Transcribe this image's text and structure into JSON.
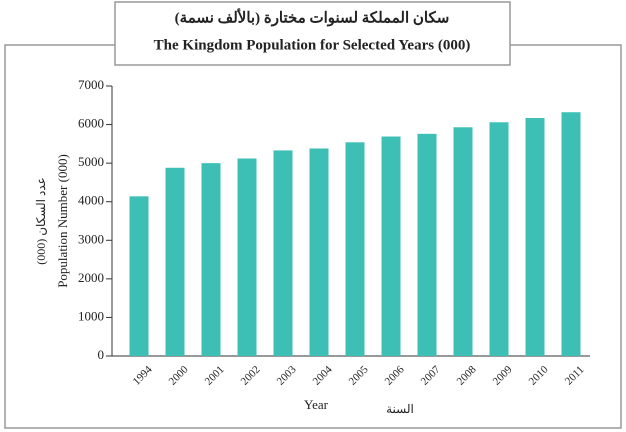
{
  "chart_data": {
    "type": "bar",
    "title": "سكان المملكة لسنوات مختارة (بالألف نسمة)",
    "subtitle": "The Kingdom Population for Selected Years (000)",
    "y_label": "Population Number (000)",
    "y_label_ar": "عدد السكان (000)",
    "x_label": "Year",
    "x_label_ar": "السنة",
    "categories": [
      "1994",
      "2000",
      "2001",
      "2002",
      "2003",
      "2004",
      "2005",
      "2006",
      "2007",
      "2008",
      "2009",
      "2010",
      "2011"
    ],
    "values": [
      4140,
      4880,
      5000,
      5120,
      5330,
      5380,
      5540,
      5690,
      5760,
      5930,
      6060,
      6170,
      6320
    ],
    "color": "#3dbfb5",
    "ylim": [
      0,
      7000
    ],
    "yticks": [
      0,
      1000,
      2000,
      3000,
      4000,
      5000,
      6000,
      7000
    ],
    "grid": false
  }
}
